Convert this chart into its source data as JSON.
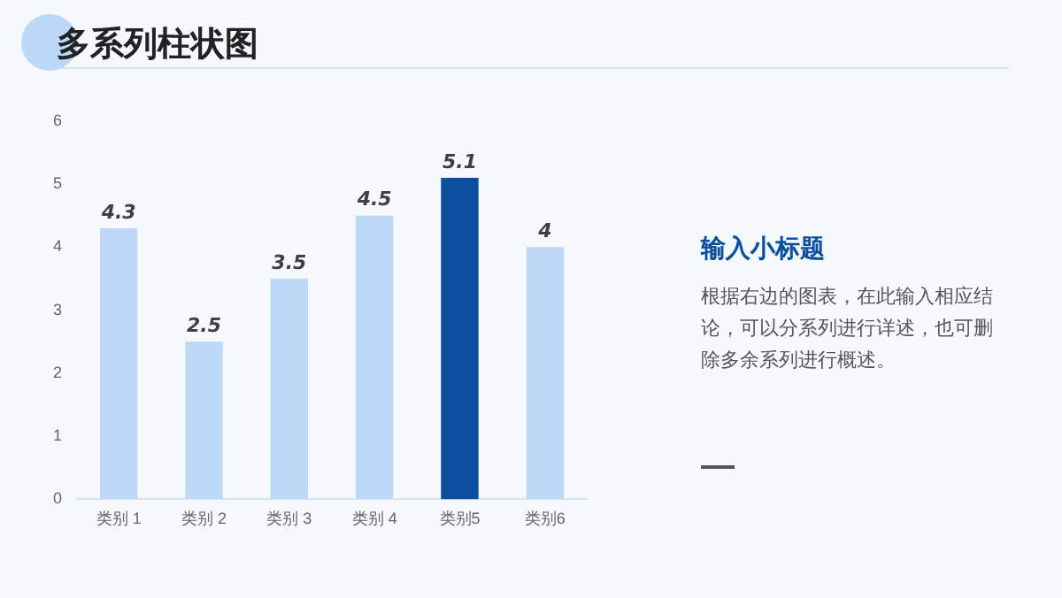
{
  "chart_data": {
    "type": "bar",
    "title": "多系列柱状图",
    "categories": [
      "类别 1",
      "类别 2",
      "类别 3",
      "类别 4",
      "类别5",
      "类别6"
    ],
    "values": [
      4.3,
      2.5,
      3.5,
      4.5,
      5.1,
      4
    ],
    "colors": [
      "#bdd9f7",
      "#bdd9f7",
      "#bdd9f7",
      "#bdd9f7",
      "#0b4f9e",
      "#bdd9f7"
    ],
    "ylim": [
      0,
      6
    ],
    "yticks": [
      0,
      1,
      2,
      3,
      4,
      5,
      6
    ],
    "grid": false,
    "legend": false,
    "data_labels": true,
    "annotations": [
      "输入小标题",
      "根据右边的图表，在此输入相应结论，可以分系列进行详述，也可删除多余系列进行概述。"
    ]
  }
}
